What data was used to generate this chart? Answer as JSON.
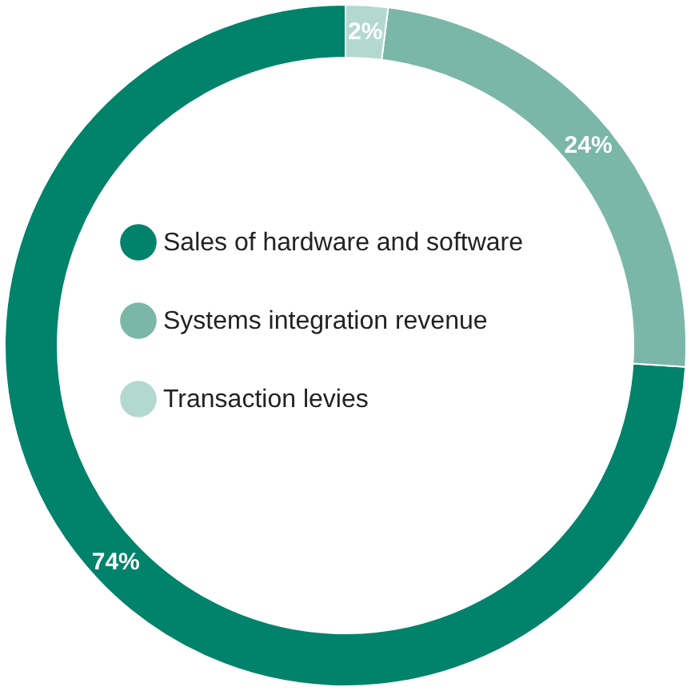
{
  "chart_data": {
    "type": "donut",
    "categories": [
      "Sales of hardware and software",
      "Systems integration revenue",
      "Transaction levies"
    ],
    "values": [
      74,
      24,
      2
    ],
    "colors": [
      "#00826b",
      "#7bb7a8",
      "#b3d8cf"
    ],
    "value_labels": [
      "74%",
      "24%",
      "2%"
    ],
    "legend": "center"
  }
}
